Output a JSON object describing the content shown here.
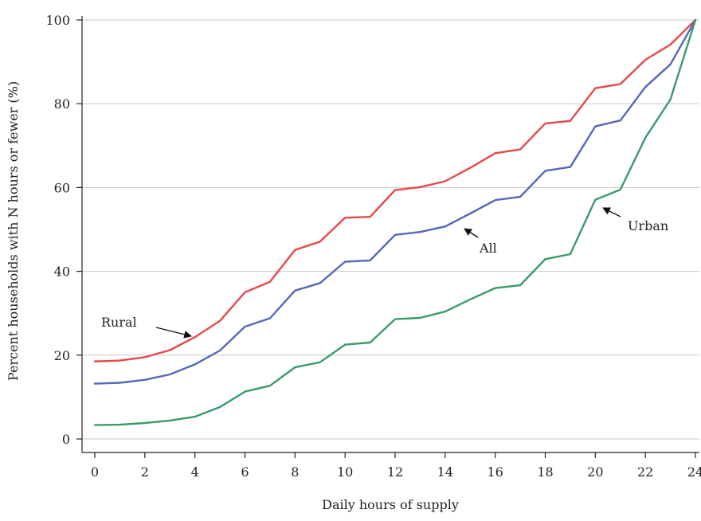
{
  "chart_data": {
    "type": "line",
    "title": "",
    "xlabel": "Daily hours of supply",
    "ylabel": "Percent households with N hours or fewer (%)",
    "xlim": [
      0,
      24
    ],
    "ylim": [
      0,
      100
    ],
    "x_ticks": [
      0,
      2,
      4,
      6,
      8,
      10,
      12,
      14,
      16,
      18,
      20,
      22,
      24
    ],
    "y_ticks": [
      0,
      20,
      40,
      60,
      80,
      100
    ],
    "grid": "horizontal",
    "x": [
      0,
      1,
      2,
      3,
      4,
      5,
      6,
      7,
      8,
      9,
      10,
      11,
      12,
      13,
      14,
      15,
      16,
      17,
      18,
      19,
      20,
      21,
      22,
      23,
      24
    ],
    "series": [
      {
        "name": "Rural",
        "color": "#e8474a",
        "values": [
          18.5,
          18.7,
          19.5,
          21.2,
          24.3,
          28.2,
          35.0,
          37.5,
          45.1,
          47.1,
          52.8,
          53.0,
          59.4,
          60.1,
          61.5,
          64.7,
          68.2,
          69.1,
          75.3,
          75.9,
          83.7,
          84.7,
          90.5,
          94.1,
          100
        ]
      },
      {
        "name": "All",
        "color": "#5468b5",
        "values": [
          13.2,
          13.4,
          14.1,
          15.4,
          17.8,
          21.1,
          26.8,
          28.8,
          35.4,
          37.2,
          42.3,
          42.6,
          48.7,
          49.4,
          50.7,
          53.8,
          57.0,
          57.8,
          64.0,
          64.9,
          74.6,
          76.0,
          84.0,
          89.4,
          100
        ]
      },
      {
        "name": "Urban",
        "color": "#3a9a6a",
        "values": [
          3.3,
          3.4,
          3.8,
          4.4,
          5.3,
          7.6,
          11.3,
          12.7,
          17.1,
          18.3,
          22.5,
          23.0,
          28.6,
          28.9,
          30.4,
          33.3,
          36.0,
          36.7,
          42.9,
          44.1,
          57.1,
          59.5,
          71.9,
          81.0,
          100
        ]
      }
    ],
    "annotations": [
      {
        "text": "Rural",
        "series": "Rural",
        "pointer": "arrow"
      },
      {
        "text": "All",
        "series": "All",
        "pointer": "arrow"
      },
      {
        "text": "Urban",
        "series": "Urban",
        "pointer": "arrow"
      }
    ]
  }
}
